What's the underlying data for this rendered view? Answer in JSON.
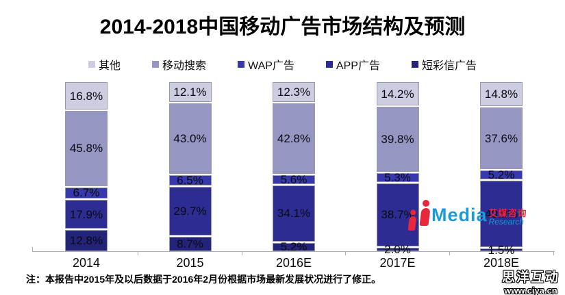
{
  "title": "2014-2018中国移动广告市场结构及预测",
  "note": "注：本报告中2015年及以后数据于2016年2月份根据市场最新发展状况进行了修正。",
  "watermark": {
    "logo_text": "Media",
    "logo_cn": "艾媒咨询",
    "logo_sub": "Research",
    "footer_cn": "思洋互动",
    "footer_url": "www.ciya.cn"
  },
  "colors": {
    "others": "#cdcde1",
    "mobile_search": "#9696c2",
    "wap_ads": "#3737ae",
    "app_ads": "#2c2c92",
    "sms_mms_ads": "#232379",
    "segment_border": "#9a9aa6",
    "axis": "#aeaeae",
    "logo_red": "#e8273d",
    "logo_blue": "#1a9bd7"
  },
  "chart_data": {
    "type": "bar",
    "stacked": true,
    "percent_stacked": true,
    "title": "2014-2018中国移动广告市场结构及预测",
    "categories": [
      "2014",
      "2015",
      "2016E",
      "2017E",
      "2018E"
    ],
    "series": [
      {
        "name": "短彩信广告",
        "color": "#232379",
        "values": [
          12.8,
          8.7,
          5.2,
          2.0,
          1.5
        ]
      },
      {
        "name": "APP广告",
        "color": "#2c2c92",
        "values": [
          17.9,
          29.7,
          34.1,
          38.7,
          40.9
        ]
      },
      {
        "name": "WAP广告",
        "color": "#3737ae",
        "values": [
          6.7,
          6.5,
          5.6,
          5.3,
          5.2
        ]
      },
      {
        "name": "移动搜索",
        "color": "#9696c2",
        "values": [
          45.8,
          43.0,
          42.8,
          39.8,
          37.6
        ]
      },
      {
        "name": "其他",
        "color": "#cdcde1",
        "values": [
          16.8,
          12.1,
          12.3,
          14.2,
          14.8
        ]
      }
    ],
    "legend_order": [
      "其他",
      "移动搜索",
      "WAP广告",
      "APP广告",
      "短彩信广告"
    ],
    "label_format": "one_decimal_percent",
    "xlabel": "",
    "ylabel": "",
    "ylim": [
      0,
      100
    ],
    "grid": false,
    "legend_position": "top"
  }
}
